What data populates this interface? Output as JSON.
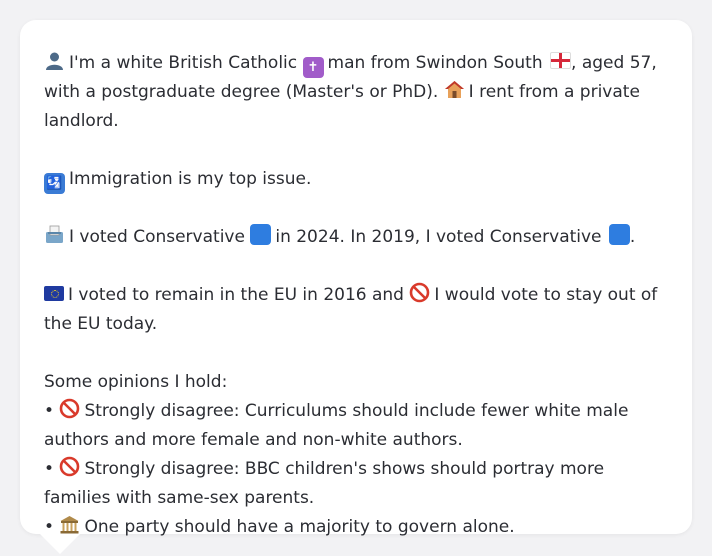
{
  "message": {
    "profile_line": "I'm a white British Catholic",
    "profile_line_2": "man from Swindon South",
    "profile_line_3": ", aged 57, with a postgraduate degree (Master's or PhD).",
    "housing": "I rent from a private landlord.",
    "top_issue": "Immigration is my top issue.",
    "vote_2024_a": "I voted Conservative",
    "vote_2024_b": "in 2024. In 2019, I voted Conservative",
    "vote_end": ".",
    "eu_a": "I voted to remain in the EU in 2016 and",
    "eu_b": "I would vote to stay out of the EU today.",
    "opinions_heading": "Some opinions I hold:",
    "opinions": [
      "Strongly disagree: Curriculums should include fewer white male authors and more female and non-white authors.",
      "Strongly disagree: BBC children's shows should portray more families with same-sex parents.",
      "One party should have a majority to govern alone."
    ],
    "bullet": "•"
  },
  "icons": {
    "person": "person-silhouette-icon",
    "cross": "latin-cross-icon",
    "flag": "england-flag-icon",
    "house": "house-icon",
    "passport": "passport-control-icon",
    "ballot": "ballot-box-icon",
    "square": "blue-square-icon",
    "eu": "eu-flag-icon",
    "no": "prohibited-icon",
    "bank": "classical-building-icon"
  },
  "colors": {
    "background": "#f2f2f4",
    "bubble": "#ffffff",
    "text": "#2b2d33",
    "conservative_blue": "#2e7de0",
    "prohibited_red": "#d93a2b"
  }
}
